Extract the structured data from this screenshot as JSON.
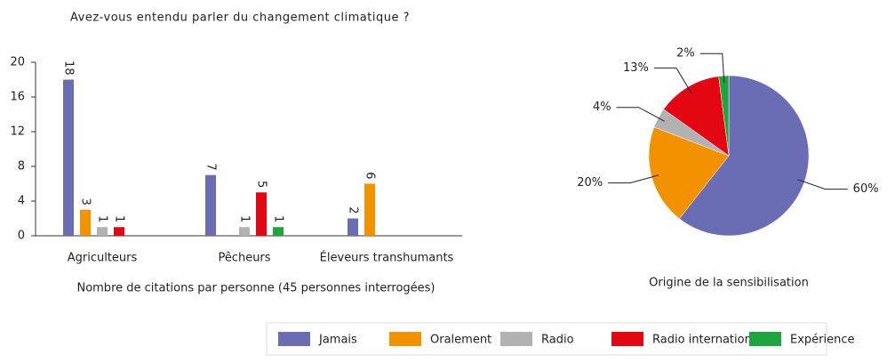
{
  "chart_data": [
    {
      "type": "bar",
      "title": "Avez-vous entendu parler du changement climatique ?",
      "x_label": "Nombre de citations par personne (45 personnes interrogées)",
      "categories": [
        "Agriculteurs",
        "Pêcheurs",
        "Éleveurs transhumants"
      ],
      "series": [
        {
          "name": "Jamais",
          "color": "#6a6db4",
          "values": [
            18,
            7,
            2
          ]
        },
        {
          "name": "Oralement",
          "color": "#f39200",
          "values": [
            3,
            null,
            6
          ]
        },
        {
          "name": "Radio",
          "color": "#b2b2b2",
          "values": [
            1,
            1,
            null
          ]
        },
        {
          "name": "Radio internationale",
          "color": "#e30613",
          "values": [
            1,
            5,
            null
          ]
        },
        {
          "name": "Expérience",
          "color": "#1fa540",
          "values": [
            null,
            1,
            null
          ]
        }
      ],
      "ylim": [
        0,
        20
      ],
      "yticks": [
        0,
        4,
        8,
        12,
        16,
        20
      ]
    },
    {
      "type": "pie",
      "title": "Origine de la sensibilisation",
      "values": [
        60,
        20,
        4,
        13,
        2
      ],
      "value_labels": [
        "60%",
        "20%",
        "4%",
        "13%",
        "2%"
      ],
      "colors": [
        "#6a6db4",
        "#f39200",
        "#b2b2b2",
        "#e30613",
        "#1fa540"
      ]
    }
  ]
}
